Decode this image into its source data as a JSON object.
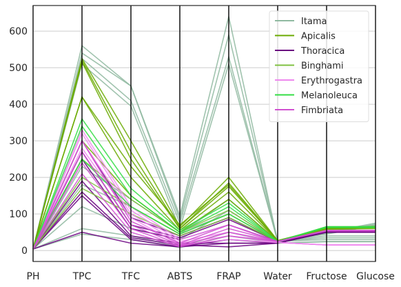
{
  "chart_data": {
    "type": "parallel-coordinates",
    "axes": [
      "PH",
      "TPC",
      "TFC",
      "ABTS",
      "FRAP",
      "Water",
      "Fructose",
      "Glucose"
    ],
    "y_ticks": [
      0,
      100,
      200,
      300,
      400,
      500,
      600
    ],
    "ylim": [
      -30,
      670
    ],
    "grid": true,
    "legend_position": "top-right",
    "colors": {
      "Itama": "#8fb9a0",
      "Apicalis": "#6aaa00",
      "Thoracica": "#6a0080",
      "Binghami": "#7fc040",
      "Erythrogastra": "#ee88ee",
      "Melanoleuca": "#33dd44",
      "Fimbriata": "#d050d0"
    },
    "series": [
      {
        "name": "Itama",
        "lines": [
          [
            4,
            560,
            450,
            95,
            640,
            25,
            50,
            75
          ],
          [
            4,
            540,
            450,
            85,
            590,
            25,
            48,
            72
          ],
          [
            4,
            525,
            410,
            75,
            530,
            25,
            46,
            70
          ],
          [
            4,
            510,
            395,
            60,
            510,
            25,
            45,
            68
          ],
          [
            4,
            60,
            40,
            10,
            50,
            20,
            25,
            25
          ],
          [
            4,
            45,
            30,
            8,
            40,
            20,
            24,
            24
          ],
          [
            4,
            120,
            60,
            30,
            110,
            25,
            30,
            30
          ],
          [
            4,
            180,
            120,
            45,
            140,
            25,
            35,
            35
          ],
          [
            4,
            230,
            140,
            50,
            100,
            25,
            40,
            40
          ]
        ]
      },
      {
        "name": "Apicalis",
        "lines": [
          [
            4,
            525,
            300,
            65,
            200,
            27,
            60,
            65
          ],
          [
            4,
            520,
            270,
            60,
            185,
            27,
            62,
            66
          ],
          [
            4,
            515,
            250,
            60,
            175,
            27,
            61,
            64
          ],
          [
            4,
            420,
            230,
            70,
            180,
            27,
            60,
            62
          ],
          [
            4,
            420,
            200,
            55,
            160,
            26,
            59,
            62
          ],
          [
            4,
            300,
            150,
            50,
            140,
            26,
            58,
            60
          ]
        ]
      },
      {
        "name": "Thoracica",
        "lines": [
          [
            4,
            300,
            90,
            40,
            90,
            25,
            50,
            55
          ],
          [
            4,
            270,
            70,
            35,
            85,
            25,
            52,
            55
          ],
          [
            4,
            250,
            60,
            30,
            70,
            25,
            50,
            52
          ],
          [
            4,
            190,
            40,
            20,
            20,
            20,
            50,
            50
          ],
          [
            4,
            160,
            35,
            15,
            10,
            20,
            50,
            50
          ],
          [
            4,
            150,
            30,
            10,
            20,
            20,
            51,
            50
          ],
          [
            4,
            50,
            20,
            10,
            30,
            20,
            50,
            50
          ]
        ]
      },
      {
        "name": "Binghami",
        "lines": [
          [
            4,
            250,
            140,
            50,
            110,
            25,
            65,
            65
          ],
          [
            4,
            200,
            120,
            45,
            100,
            25,
            64,
            64
          ],
          [
            4,
            170,
            100,
            40,
            90,
            25,
            63,
            63
          ]
        ]
      },
      {
        "name": "Erythrogastra",
        "lines": [
          [
            4,
            330,
            120,
            30,
            70,
            22,
            15,
            15
          ],
          [
            4,
            320,
            110,
            25,
            50,
            22,
            15,
            15
          ],
          [
            4,
            300,
            100,
            20,
            40,
            22,
            15,
            15
          ],
          [
            4,
            280,
            90,
            15,
            30,
            22,
            15,
            15
          ]
        ]
      },
      {
        "name": "Melanoleuca",
        "lines": [
          [
            4,
            360,
            170,
            55,
            130,
            25,
            65,
            65
          ],
          [
            4,
            340,
            150,
            50,
            120,
            25,
            64,
            64
          ],
          [
            4,
            250,
            120,
            45,
            100,
            25,
            63,
            63
          ]
        ]
      },
      {
        "name": "Fimbriata",
        "lines": [
          [
            4,
            300,
            80,
            20,
            70,
            25,
            55,
            55
          ],
          [
            4,
            270,
            70,
            15,
            60,
            25,
            55,
            55
          ],
          [
            4,
            240,
            60,
            12,
            50,
            25,
            54,
            54
          ],
          [
            4,
            210,
            50,
            10,
            40,
            25,
            53,
            53
          ]
        ]
      }
    ]
  }
}
